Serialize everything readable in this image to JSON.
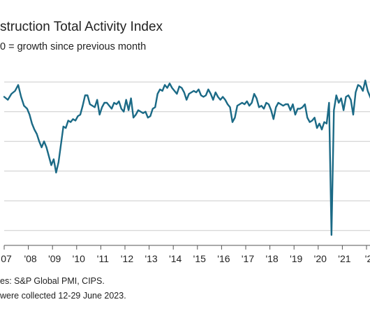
{
  "header": {
    "title": "struction Total Activity Index",
    "subtitle": "0 = growth since previous month"
  },
  "footer": {
    "source": "es: S&P Global PMI, CIPS.",
    "collected": "were collected 12-29 June 2023."
  },
  "colors": {
    "line": "#1b6a86",
    "grid": "#cccccc",
    "axis": "#555555"
  },
  "chart_data": {
    "type": "line",
    "title": "struction Total Activity Index",
    "subtitle": "0 = growth since previous month",
    "xlabel": "",
    "ylabel": "",
    "xlim": [
      2007.0,
      2023.2
    ],
    "ylim": [
      5,
      65
    ],
    "grid": "horizontal",
    "x_tick_labels": [
      "07",
      "'08",
      "'09",
      "'10",
      "'11",
      "'12",
      "'13",
      "'14",
      "'15",
      "'16",
      "'17",
      "'18",
      "'19",
      "'20",
      "'21",
      "'2"
    ],
    "x_tick_positions": [
      2007,
      2008,
      2009,
      2010,
      2011,
      2012,
      2013,
      2014,
      2015,
      2016,
      2017,
      2018,
      2019,
      2020,
      2021,
      2022
    ],
    "y_gridlines": [
      10,
      20,
      30,
      40,
      50,
      60
    ],
    "series": [
      {
        "points": [
          [
            2007.0,
            55.0
          ],
          [
            2007.15,
            54.0
          ],
          [
            2007.3,
            56.0
          ],
          [
            2007.45,
            57.0
          ],
          [
            2007.58,
            59.0
          ],
          [
            2007.7,
            55.0
          ],
          [
            2007.82,
            52.0
          ],
          [
            2007.95,
            51.0
          ],
          [
            2008.05,
            49.0
          ],
          [
            2008.15,
            46.0
          ],
          [
            2008.25,
            44.0
          ],
          [
            2008.35,
            42.5
          ],
          [
            2008.45,
            40.0
          ],
          [
            2008.55,
            38.0
          ],
          [
            2008.65,
            40.0
          ],
          [
            2008.75,
            38.0
          ],
          [
            2008.85,
            35.0
          ],
          [
            2008.95,
            32.0
          ],
          [
            2009.05,
            34.0
          ],
          [
            2009.15,
            29.5
          ],
          [
            2009.25,
            33.0
          ],
          [
            2009.35,
            39.0
          ],
          [
            2009.45,
            45.0
          ],
          [
            2009.55,
            44.5
          ],
          [
            2009.65,
            47.0
          ],
          [
            2009.75,
            46.5
          ],
          [
            2009.85,
            47.5
          ],
          [
            2009.95,
            47.0
          ],
          [
            2010.05,
            48.5
          ],
          [
            2010.15,
            49.0
          ],
          [
            2010.25,
            52.0
          ],
          [
            2010.35,
            55.5
          ],
          [
            2010.45,
            55.5
          ],
          [
            2010.55,
            52.5
          ],
          [
            2010.65,
            52.0
          ],
          [
            2010.75,
            51.5
          ],
          [
            2010.85,
            54.0
          ],
          [
            2010.95,
            49.0
          ],
          [
            2011.05,
            51.5
          ],
          [
            2011.15,
            53.0
          ],
          [
            2011.25,
            53.0
          ],
          [
            2011.35,
            52.0
          ],
          [
            2011.45,
            51.0
          ],
          [
            2011.55,
            53.0
          ],
          [
            2011.65,
            52.5
          ],
          [
            2011.75,
            53.5
          ],
          [
            2011.85,
            51.0
          ],
          [
            2011.95,
            50.0
          ],
          [
            2012.05,
            54.0
          ],
          [
            2012.15,
            50.5
          ],
          [
            2012.25,
            54.5
          ],
          [
            2012.35,
            48.0
          ],
          [
            2012.45,
            49.0
          ],
          [
            2012.55,
            50.5
          ],
          [
            2012.65,
            50.0
          ],
          [
            2012.75,
            49.5
          ],
          [
            2012.85,
            50.0
          ],
          [
            2012.95,
            48.0
          ],
          [
            2013.05,
            48.5
          ],
          [
            2013.15,
            51.0
          ],
          [
            2013.25,
            51.5
          ],
          [
            2013.35,
            56.0
          ],
          [
            2013.45,
            57.5
          ],
          [
            2013.55,
            57.0
          ],
          [
            2013.65,
            59.0
          ],
          [
            2013.75,
            58.0
          ],
          [
            2013.85,
            59.5
          ],
          [
            2013.95,
            58.0
          ],
          [
            2014.05,
            57.0
          ],
          [
            2014.15,
            56.0
          ],
          [
            2014.25,
            58.5
          ],
          [
            2014.35,
            58.0
          ],
          [
            2014.45,
            56.5
          ],
          [
            2014.55,
            54.0
          ],
          [
            2014.65,
            56.0
          ],
          [
            2014.75,
            56.5
          ],
          [
            2014.85,
            57.0
          ],
          [
            2014.95,
            56.5
          ],
          [
            2015.05,
            57.5
          ],
          [
            2015.15,
            55.5
          ],
          [
            2015.25,
            55.0
          ],
          [
            2015.35,
            55.5
          ],
          [
            2015.45,
            57.5
          ],
          [
            2015.55,
            56.0
          ],
          [
            2015.65,
            54.0
          ],
          [
            2015.75,
            56.5
          ],
          [
            2015.85,
            55.0
          ],
          [
            2015.95,
            54.0
          ],
          [
            2016.05,
            55.0
          ],
          [
            2016.15,
            54.0
          ],
          [
            2016.25,
            52.5
          ],
          [
            2016.35,
            51.5
          ],
          [
            2016.45,
            46.5
          ],
          [
            2016.55,
            48.0
          ],
          [
            2016.65,
            52.0
          ],
          [
            2016.75,
            52.5
          ],
          [
            2016.85,
            53.0
          ],
          [
            2016.95,
            52.5
          ],
          [
            2017.05,
            53.5
          ],
          [
            2017.15,
            52.0
          ],
          [
            2017.25,
            53.0
          ],
          [
            2017.35,
            56.0
          ],
          [
            2017.45,
            54.5
          ],
          [
            2017.55,
            51.5
          ],
          [
            2017.65,
            52.0
          ],
          [
            2017.75,
            51.0
          ],
          [
            2017.85,
            53.0
          ],
          [
            2017.95,
            52.5
          ],
          [
            2018.05,
            50.5
          ],
          [
            2018.15,
            47.5
          ],
          [
            2018.25,
            51.5
          ],
          [
            2018.35,
            53.0
          ],
          [
            2018.45,
            52.5
          ],
          [
            2018.55,
            52.0
          ],
          [
            2018.65,
            52.5
          ],
          [
            2018.75,
            52.5
          ],
          [
            2018.85,
            50.5
          ],
          [
            2018.95,
            52.5
          ],
          [
            2019.05,
            49.0
          ],
          [
            2019.15,
            51.0
          ],
          [
            2019.25,
            51.0
          ],
          [
            2019.35,
            51.5
          ],
          [
            2019.45,
            52.5
          ],
          [
            2019.55,
            48.0
          ],
          [
            2019.65,
            46.5
          ],
          [
            2019.75,
            47.0
          ],
          [
            2019.85,
            48.0
          ],
          [
            2019.95,
            44.5
          ],
          [
            2020.05,
            46.0
          ],
          [
            2020.15,
            44.0
          ],
          [
            2020.25,
            46.5
          ],
          [
            2020.35,
            46.0
          ],
          [
            2020.45,
            53.0
          ],
          [
            2020.55,
            8.5
          ],
          [
            2020.65,
            50.5
          ],
          [
            2020.75,
            55.5
          ],
          [
            2020.85,
            53.0
          ],
          [
            2020.95,
            54.5
          ],
          [
            2021.05,
            50.5
          ],
          [
            2021.15,
            55.0
          ],
          [
            2021.25,
            55.5
          ],
          [
            2021.35,
            54.0
          ],
          [
            2021.45,
            49.0
          ],
          [
            2021.55,
            56.5
          ],
          [
            2021.65,
            59.0
          ],
          [
            2021.75,
            58.5
          ],
          [
            2021.85,
            57.0
          ],
          [
            2021.95,
            60.5
          ],
          [
            2022.05,
            57.0
          ],
          [
            2022.15,
            55.0
          ],
          [
            2022.25,
            53.0
          ],
          [
            2022.35,
            54.5
          ],
          [
            2022.45,
            54.0
          ],
          [
            2022.55,
            54.5
          ],
          [
            2022.65,
            55.5
          ],
          [
            2022.75,
            55.0
          ],
          [
            2022.85,
            57.0
          ],
          [
            2022.95,
            56.0
          ],
          [
            2023.05,
            55.5
          ],
          [
            2023.15,
            56.0
          ],
          [
            2023.25,
            54.5
          ],
          [
            2023.35,
            56.0
          ],
          [
            2023.45,
            54.5
          ]
        ]
      }
    ]
  }
}
